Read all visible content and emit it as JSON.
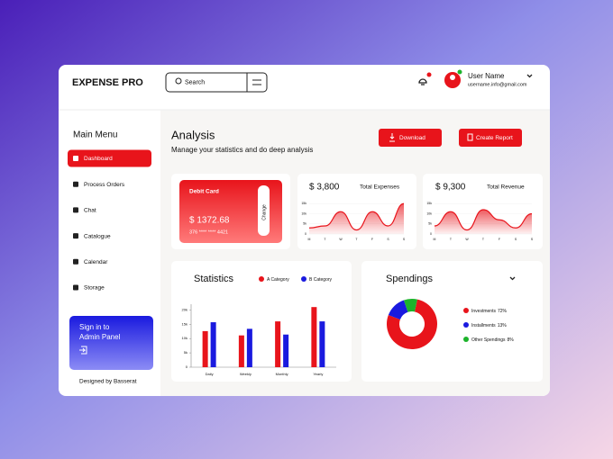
{
  "app": {
    "brand": "EXPENSE PRO",
    "search_placeholder": "Search",
    "user_name": "User Name",
    "user_email": "username.info@gmail.com"
  },
  "sidebar": {
    "title": "Main Menu",
    "items": [
      "Dashboard",
      "Process Orders",
      "Chat",
      "Catalogue",
      "Calendar",
      "Storage"
    ],
    "promo": [
      "Sign in to",
      "Admin Panel"
    ],
    "footer": "Designed by Basserat"
  },
  "main": {
    "title": "Analysis",
    "subtitle": "Manage your statistics and do deep analysis",
    "buttons": [
      "Download",
      "Create Report"
    ],
    "card": {
      "title": "Debit Card",
      "balance": "$ 1372.68",
      "number": "376 **** **** 4421",
      "action": "Change"
    },
    "expenses": {
      "amount": "$ 3,800",
      "label": "Total Expenses"
    },
    "revenue": {
      "amount": "$ 9,300",
      "label": "Total Revenue"
    }
  },
  "chart_data": [
    {
      "type": "area",
      "categories": [
        "M",
        "T",
        "W",
        "T",
        "F",
        "S",
        "S"
      ],
      "values": [
        3000,
        4000,
        11000,
        2000,
        11000,
        4000,
        15000
      ],
      "color": "#e8141b",
      "ylim": [
        0,
        20000
      ],
      "yticks": [
        {
          "value": 0,
          "label": "0"
        },
        {
          "value": 5000,
          "label": "5k"
        },
        {
          "value": 10000,
          "label": "10k"
        },
        {
          "value": 15000,
          "label": "15k"
        }
      ]
    },
    {
      "type": "area",
      "categories": [
        "M",
        "T",
        "W",
        "T",
        "F",
        "S",
        "S"
      ],
      "values": [
        4000,
        11000,
        2000,
        12000,
        7000,
        3000,
        10000
      ],
      "color": "#e8141b",
      "ylim": [
        0,
        20000
      ],
      "yticks": [
        {
          "value": 0,
          "label": "0"
        },
        {
          "value": 5000,
          "label": "5k"
        },
        {
          "value": 10000,
          "label": "10k"
        },
        {
          "value": 15000,
          "label": "15k"
        }
      ]
    },
    {
      "type": "bar",
      "title": "Statistics",
      "categories": [
        "Daily",
        "Weekly",
        "Monthly",
        "Yearly"
      ],
      "series": [
        {
          "name": "A Category",
          "color": "#e8141b",
          "values": [
            12600,
            11100,
            16000,
            21000
          ]
        },
        {
          "name": "B Category",
          "color": "#1a1adf",
          "values": [
            15700,
            13400,
            11400,
            16000
          ]
        }
      ],
      "ylim": [
        0,
        22000
      ],
      "yticks": [
        {
          "value": 0,
          "label": "0"
        },
        {
          "value": 5000,
          "label": "5k"
        },
        {
          "value": 10000,
          "label": "10k"
        },
        {
          "value": 15000,
          "label": "15k"
        },
        {
          "value": 20000,
          "label": "20k"
        }
      ]
    },
    {
      "type": "pie",
      "title": "Spendings",
      "categories": [
        "Investments",
        "Installments",
        "Other Spendings"
      ],
      "values": [
        72,
        13,
        8
      ],
      "value_labels": [
        "72%",
        "13%",
        "8%"
      ],
      "colors": [
        "#e8141b",
        "#1a1adf",
        "#1cb32b"
      ]
    }
  ]
}
